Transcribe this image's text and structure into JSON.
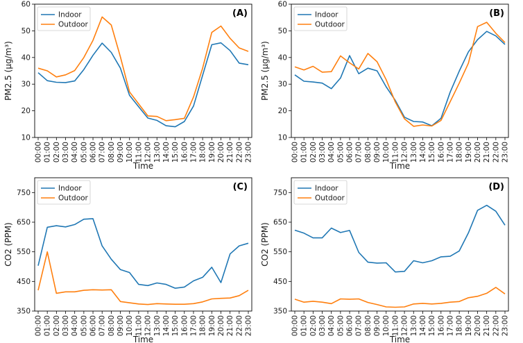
{
  "colors": {
    "indoor": "#1f77b4",
    "outdoor": "#ff7f0e"
  },
  "chart_data": [
    {
      "type": "line",
      "panel": "(A)",
      "xlabel": "Time",
      "ylabel": "PM2.5 (μg/m³)",
      "ylim": [
        10,
        60
      ],
      "yticks": [
        10,
        20,
        30,
        40,
        50,
        60
      ],
      "legend": "top-left",
      "categories": [
        "00:00",
        "01:00",
        "02:00",
        "03:00",
        "04:00",
        "05:00",
        "06:00",
        "07:00",
        "08:00",
        "09:00",
        "10:00",
        "11:00",
        "12:00",
        "13:00",
        "14:00",
        "15:00",
        "16:00",
        "17:00",
        "18:00",
        "19:00",
        "20:00",
        "21:00",
        "22:00",
        "23:00"
      ],
      "series": [
        {
          "name": "Indoor",
          "values": [
            34.3,
            31.3,
            30.7,
            30.6,
            31.2,
            35.5,
            40.8,
            45.4,
            41.9,
            36.0,
            25.8,
            21.5,
            17.3,
            16.4,
            14.4,
            14.0,
            16.0,
            21.8,
            33.3,
            44.8,
            45.5,
            42.6,
            37.9,
            37.3
          ]
        },
        {
          "name": "Outdoor",
          "values": [
            36.0,
            35.0,
            32.7,
            33.5,
            35.1,
            40.0,
            46.4,
            55.2,
            52.2,
            40.2,
            27.1,
            22.6,
            18.1,
            17.9,
            16.3,
            16.7,
            17.2,
            25.2,
            36.0,
            49.4,
            51.8,
            47.2,
            43.6,
            42.3
          ]
        }
      ]
    },
    {
      "type": "line",
      "panel": "(B)",
      "xlabel": "Time",
      "ylabel": "PM2.5 (μg/m³)",
      "ylim": [
        10,
        60
      ],
      "yticks": [
        10,
        20,
        30,
        40,
        50,
        60
      ],
      "legend": "top-left",
      "categories": [
        "00:00",
        "01:00",
        "02:00",
        "03:00",
        "04:00",
        "05:00",
        "06:00",
        "07:00",
        "08:00",
        "09:00",
        "10:00",
        "11:00",
        "12:00",
        "13:00",
        "14:00",
        "15:00",
        "16:00",
        "17:00",
        "18:00",
        "19:00",
        "20:00",
        "21:00",
        "22:00",
        "23:00"
      ],
      "series": [
        {
          "name": "Indoor",
          "values": [
            33.5,
            31.1,
            30.8,
            30.4,
            28.3,
            32.3,
            40.7,
            33.9,
            36.0,
            35.0,
            29.0,
            23.9,
            17.6,
            16.0,
            15.8,
            14.4,
            17.2,
            27.0,
            34.9,
            42.1,
            46.7,
            49.8,
            48.1,
            44.9
          ]
        },
        {
          "name": "Outdoor",
          "values": [
            36.5,
            35.3,
            36.7,
            34.5,
            34.7,
            40.6,
            38.0,
            35.7,
            41.5,
            38.4,
            31.7,
            23.3,
            17.0,
            14.2,
            14.7,
            14.3,
            16.4,
            23.4,
            30.4,
            37.9,
            51.6,
            53.2,
            49.1,
            45.6
          ]
        }
      ]
    },
    {
      "type": "line",
      "panel": "(C)",
      "xlabel": "Time",
      "ylabel": "CO2 (PPM)",
      "ylim": [
        350,
        800
      ],
      "yticks": [
        350,
        450,
        550,
        650,
        750
      ],
      "legend": "top-left",
      "categories": [
        "00:00",
        "01:00",
        "02:00",
        "03:00",
        "04:00",
        "05:00",
        "06:00",
        "07:00",
        "08:00",
        "09:00",
        "10:00",
        "11:00",
        "12:00",
        "13:00",
        "14:00",
        "15:00",
        "16:00",
        "17:00",
        "18:00",
        "19:00",
        "20:00",
        "21:00",
        "22:00",
        "23:00"
      ],
      "series": [
        {
          "name": "Indoor",
          "values": [
            503,
            633,
            638,
            634,
            642,
            660,
            662,
            570,
            525,
            490,
            480,
            440,
            436,
            445,
            440,
            427,
            431,
            452,
            464,
            498,
            446,
            543,
            570,
            579
          ]
        },
        {
          "name": "Outdoor",
          "values": [
            420,
            550,
            410,
            415,
            415,
            420,
            422,
            421,
            422,
            382,
            378,
            374,
            372,
            375,
            374,
            373,
            373,
            375,
            381,
            391,
            393,
            394,
            402,
            420
          ]
        }
      ]
    },
    {
      "type": "line",
      "panel": "(D)",
      "xlabel": "Time",
      "ylabel": "CO2 (PPM)",
      "ylim": [
        350,
        800
      ],
      "yticks": [
        350,
        450,
        550,
        650,
        750
      ],
      "legend": "top-left",
      "categories": [
        "00:00",
        "01:00",
        "02:00",
        "03:00",
        "04:00",
        "05:00",
        "06:00",
        "07:00",
        "08:00",
        "09:00",
        "10:00",
        "11:00",
        "12:00",
        "13:00",
        "14:00",
        "15:00",
        "16:00",
        "17:00",
        "18:00",
        "19:00",
        "20:00",
        "21:00",
        "22:00",
        "23:00"
      ],
      "series": [
        {
          "name": "Indoor",
          "values": [
            623,
            613,
            597,
            597,
            630,
            615,
            622,
            548,
            515,
            512,
            513,
            482,
            484,
            520,
            513,
            520,
            533,
            535,
            553,
            614,
            690,
            707,
            687,
            640
          ]
        },
        {
          "name": "Outdoor",
          "values": [
            390,
            380,
            383,
            380,
            375,
            391,
            390,
            391,
            379,
            372,
            364,
            363,
            364,
            374,
            376,
            374,
            376,
            380,
            382,
            395,
            400,
            410,
            430,
            408
          ]
        }
      ]
    }
  ]
}
